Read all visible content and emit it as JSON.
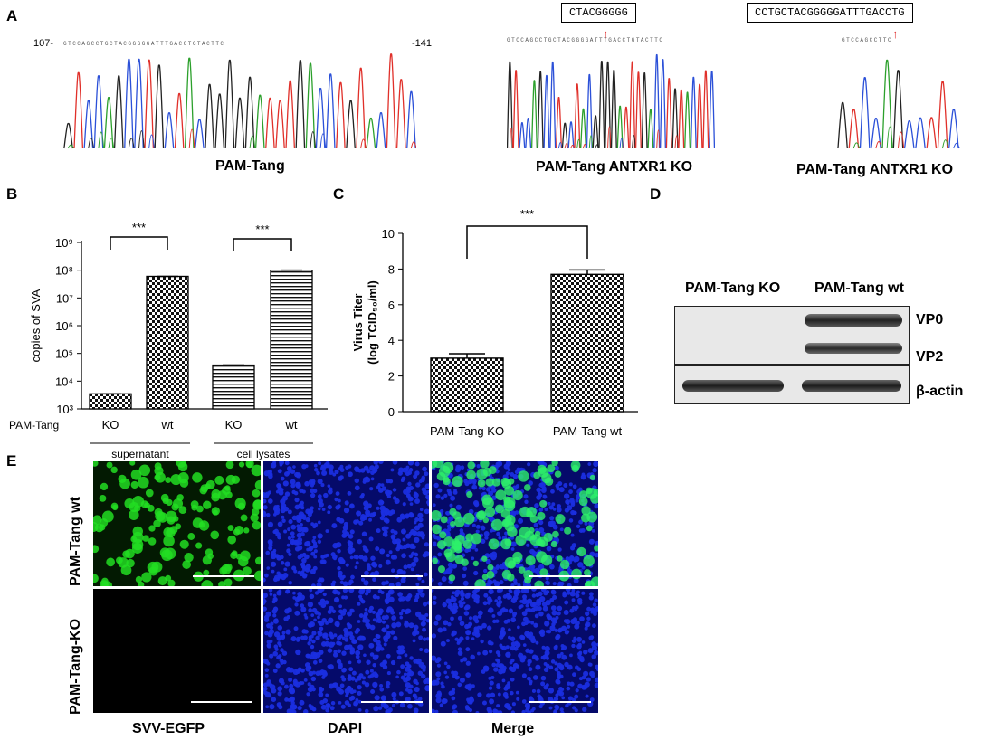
{
  "panels": {
    "A": {
      "label": "A",
      "chromatograms": [
        {
          "caption": "PAM-Tang",
          "pos_start": "107-",
          "pos_end": "-141",
          "sequence": "GTCCAGCCTGCTACGGGGGATTTGACCTGTACTTC"
        },
        {
          "caption": "PAM-Tang ANTXR1 KO",
          "sequence": "GTCCAGCCTGCTACGGGGATTTGACCTGTACTTC",
          "insert_box": "CTACGGGGG"
        },
        {
          "caption": "PAM-Tang ANTXR1 KO",
          "sequence": "GTCCAGCCTTC",
          "insert_box": "CCTGCTACGGGGGATTTGACCTG"
        }
      ]
    },
    "B": {
      "label": "B",
      "row_label": "PAM-Tang",
      "group_labels": [
        "supernatant",
        "cell lysates"
      ],
      "significance": [
        "***",
        "***"
      ]
    },
    "C": {
      "label": "C",
      "significance": "***"
    },
    "D": {
      "label": "D",
      "lane_labels": [
        "PAM-Tang KO",
        "PAM-Tang wt"
      ],
      "band_labels": [
        "VP0",
        "VP2",
        "β-actin"
      ]
    },
    "E": {
      "label": "E",
      "row_labels": [
        "PAM-Tang wt",
        "PAM-Tang-KO"
      ],
      "column_labels": [
        "SVV-EGFP",
        "DAPI",
        "Merge"
      ]
    }
  },
  "chart_data": [
    {
      "type": "bar",
      "panel": "B",
      "categories": [
        "KO",
        "wt",
        "KO",
        "wt"
      ],
      "groups": [
        "supernatant",
        "supernatant",
        "cell lysates",
        "cell lysates"
      ],
      "values": [
        3500,
        60000000,
        38000,
        100000000
      ],
      "ylabel": "copies of SVA",
      "yscale": "log",
      "ylim": [
        1000,
        1000000000
      ],
      "yticks": [
        "10³",
        "10⁴",
        "10⁵",
        "10⁶",
        "10⁷",
        "10⁸",
        "10⁹"
      ],
      "yticks_values": [
        1000,
        10000,
        100000,
        1000000,
        10000000,
        100000000,
        1000000000
      ],
      "fills": [
        "checker",
        "checker",
        "hlines",
        "hlines"
      ]
    },
    {
      "type": "bar",
      "panel": "C",
      "categories": [
        "PAM-Tang KO",
        "PAM-Tang wt"
      ],
      "values": [
        3.0,
        7.7
      ],
      "errors": [
        0.25,
        0.25
      ],
      "ylabel": "Virus Titer",
      "ylabel2": "(log TCID₅₀/ml)",
      "ylim": [
        0,
        10
      ],
      "yticks": [
        0,
        2,
        4,
        6,
        8,
        10
      ]
    }
  ],
  "colors": {
    "gfp": "#22dd22",
    "dapi": "#1a2ee0",
    "trace_A": "#2ca02c",
    "trace_C": "#2b50d8",
    "trace_G": "#222222",
    "trace_T": "#e0302a"
  }
}
